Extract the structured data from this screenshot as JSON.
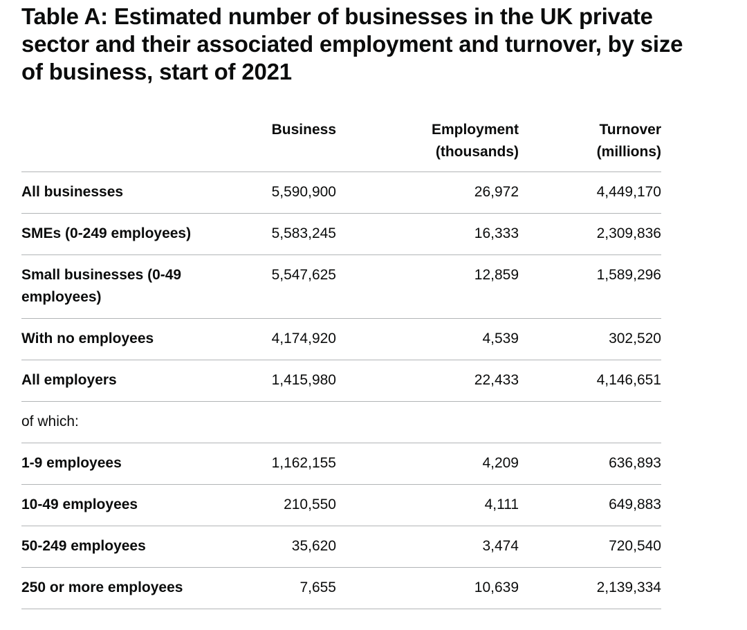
{
  "title": "Table A: Estimated number of businesses in the UK private sector and their associated employment and turnover, by size of business, start of 2021",
  "table": {
    "headers": {
      "row_label": "",
      "business": "Business",
      "employment_line1": "Employment",
      "employment_line2": "(thousands)",
      "turnover_line1": "Turnover",
      "turnover_line2": "(millions)"
    },
    "rows": [
      {
        "label": "All businesses",
        "business": "5,590,900",
        "employment": "26,972",
        "turnover": "4,449,170"
      },
      {
        "label": "SMEs (0-249 employees)",
        "business": "5,583,245",
        "employment": "16,333",
        "turnover": "2,309,836"
      },
      {
        "label": "Small businesses (0-49 employees)",
        "business": "5,547,625",
        "employment": "12,859",
        "turnover": "1,589,296"
      },
      {
        "label": "With no employees",
        "business": "4,174,920",
        "employment": "4,539",
        "turnover": "302,520"
      },
      {
        "label": "All employers",
        "business": "1,415,980",
        "employment": "22,433",
        "turnover": "4,146,651"
      },
      {
        "label": "of which:",
        "business": "",
        "employment": "",
        "turnover": ""
      },
      {
        "label": "1-9 employees",
        "business": "1,162,155",
        "employment": "4,209",
        "turnover": "636,893"
      },
      {
        "label": "10-49 employees",
        "business": "210,550",
        "employment": "4,111",
        "turnover": "649,883"
      },
      {
        "label": "50-249 employees",
        "business": "35,620",
        "employment": "3,474",
        "turnover": "720,540"
      },
      {
        "label": "250 or more employees",
        "business": "7,655",
        "employment": "10,639",
        "turnover": "2,139,334"
      }
    ]
  }
}
